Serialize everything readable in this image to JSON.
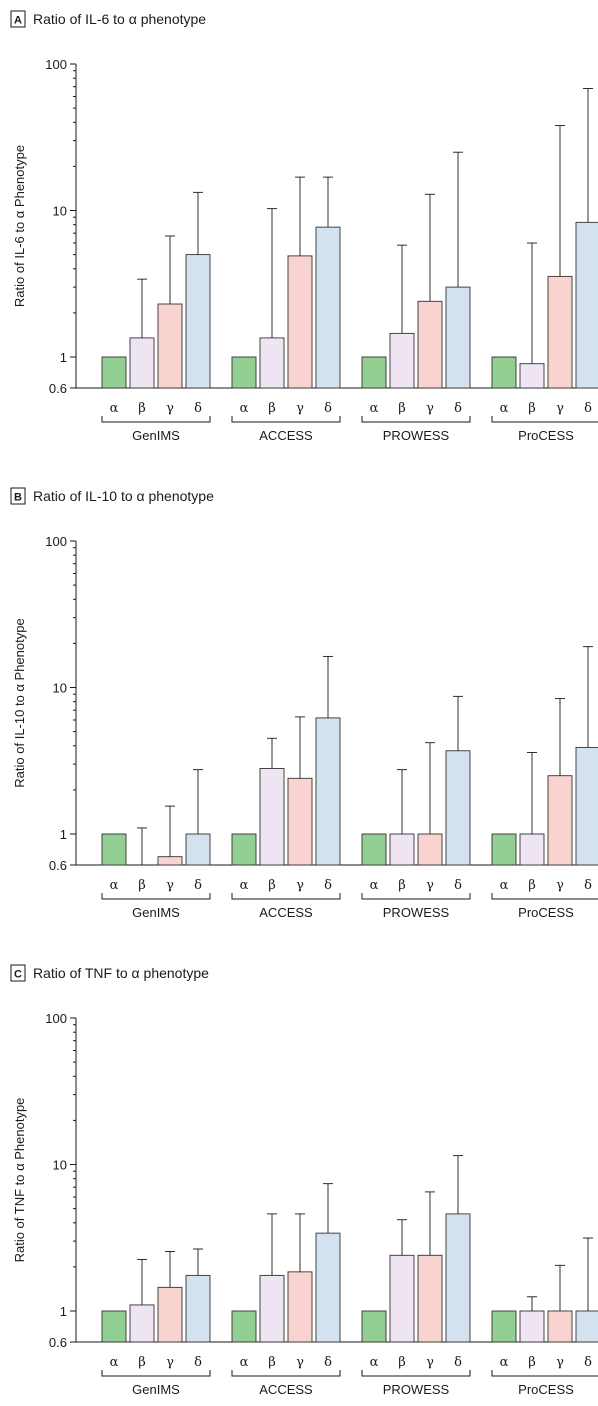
{
  "chart_data": [
    {
      "type": "bar",
      "panel_letter": "A",
      "title": "Ratio of IL-6 to α phenotype",
      "ylabel": "Ratio of IL-6 to α Phenotype",
      "yscale": "log",
      "ylim": [
        0.6,
        100
      ],
      "yticks": [
        "100",
        "10",
        "1",
        "0.6"
      ],
      "groups": [
        "GenIMS",
        "ACCESS",
        "PROWESS",
        "ProCESS"
      ],
      "categories": [
        "α",
        "β",
        "γ",
        "δ"
      ],
      "colors": [
        "#93cf93",
        "#efe5f2",
        "#f8d3cf",
        "#d3e2ee"
      ],
      "values": [
        [
          1.0,
          1.35,
          2.3,
          5.0
        ],
        [
          1.0,
          1.35,
          4.9,
          7.7
        ],
        [
          1.0,
          1.45,
          2.4,
          3.0
        ],
        [
          1.0,
          0.9,
          3.55,
          8.3
        ]
      ],
      "error_upper": [
        [
          null,
          3.4,
          6.7,
          13.3
        ],
        [
          null,
          10.3,
          16.9,
          16.9
        ],
        [
          null,
          5.8,
          12.9,
          25.0
        ],
        [
          null,
          6.0,
          38.0,
          68.0
        ]
      ]
    },
    {
      "type": "bar",
      "panel_letter": "B",
      "title": "Ratio of IL-10 to α phenotype",
      "ylabel": "Ratio of IL-10 to α Phenotype",
      "yscale": "log",
      "ylim": [
        0.6,
        100
      ],
      "yticks": [
        "100",
        "10",
        "1",
        "0.6"
      ],
      "groups": [
        "GenIMS",
        "ACCESS",
        "PROWESS",
        "ProCESS"
      ],
      "categories": [
        "α",
        "β",
        "γ",
        "δ"
      ],
      "colors": [
        "#93cf93",
        "#efe5f2",
        "#f8d3cf",
        "#d3e2ee"
      ],
      "values": [
        [
          1.0,
          0.6,
          0.7,
          1.0
        ],
        [
          1.0,
          2.8,
          2.4,
          6.2
        ],
        [
          1.0,
          1.0,
          1.0,
          3.7
        ],
        [
          1.0,
          1.0,
          2.5,
          3.9
        ]
      ],
      "error_upper": [
        [
          null,
          1.1,
          1.55,
          2.75
        ],
        [
          null,
          4.5,
          6.3,
          16.3
        ],
        [
          null,
          2.75,
          4.2,
          8.7
        ],
        [
          null,
          3.6,
          8.4,
          19.0
        ]
      ]
    },
    {
      "type": "bar",
      "panel_letter": "C",
      "title": "Ratio of TNF to α phenotype",
      "ylabel": "Ratio of TNF to α Phenotype",
      "yscale": "log",
      "ylim": [
        0.6,
        100
      ],
      "yticks": [
        "100",
        "10",
        "1",
        "0.6"
      ],
      "groups": [
        "GenIMS",
        "ACCESS",
        "PROWESS",
        "ProCESS"
      ],
      "categories": [
        "α",
        "β",
        "γ",
        "δ"
      ],
      "colors": [
        "#93cf93",
        "#efe5f2",
        "#f8d3cf",
        "#d3e2ee"
      ],
      "values": [
        [
          1.0,
          1.1,
          1.45,
          1.75
        ],
        [
          1.0,
          1.75,
          1.85,
          3.4
        ],
        [
          1.0,
          2.4,
          2.4,
          4.6
        ],
        [
          1.0,
          1.0,
          1.0,
          1.0
        ]
      ],
      "error_upper": [
        [
          null,
          2.25,
          2.55,
          2.65
        ],
        [
          null,
          4.6,
          4.6,
          7.4
        ],
        [
          null,
          4.2,
          6.5,
          11.5
        ],
        [
          null,
          1.25,
          2.05,
          3.15
        ]
      ]
    }
  ]
}
